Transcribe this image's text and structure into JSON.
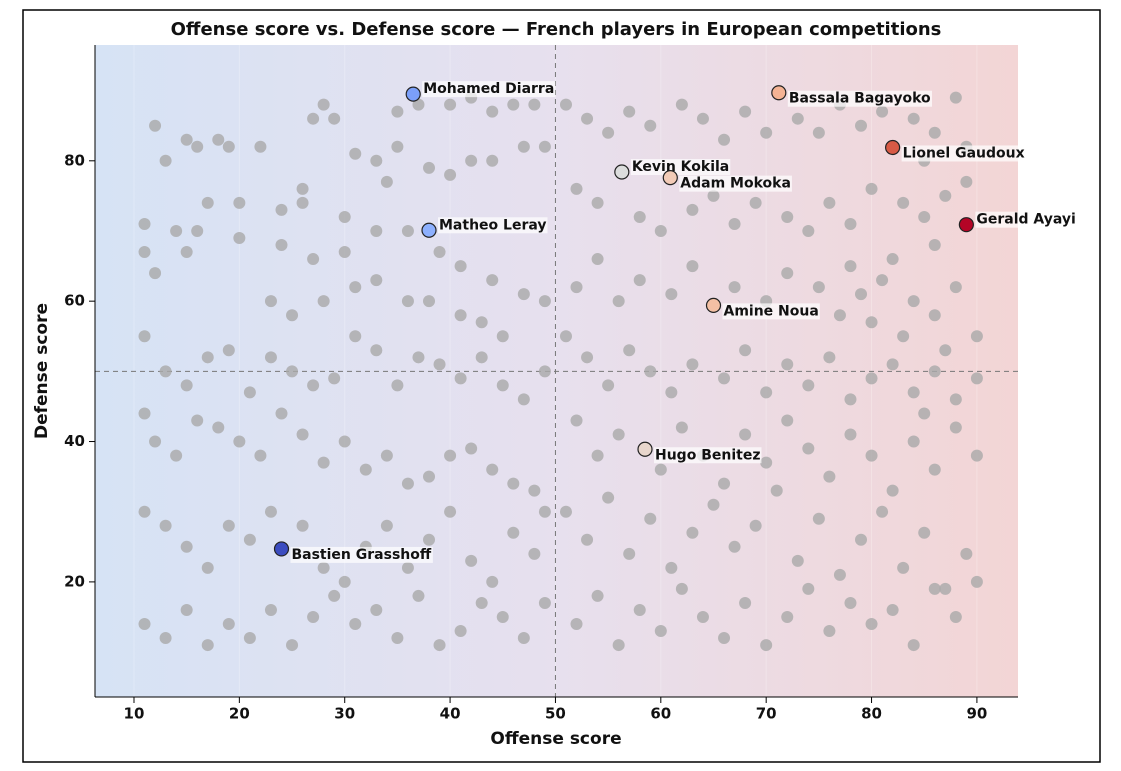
{
  "chart_data": {
    "type": "scatter",
    "title": "Offense score vs. Defense score — French players in European competitions",
    "x_label": "Offense score",
    "y_label": "Defense score",
    "xlim": [
      6.3,
      93.9
    ],
    "ylim": [
      3.6,
      96.5
    ],
    "xticks": [
      10,
      20,
      30,
      40,
      50,
      60,
      70,
      80,
      90
    ],
    "yticks": [
      20,
      40,
      60,
      80
    ],
    "reference_x": 50,
    "reference_y": 50,
    "points": {
      "color": "#a9a9a9",
      "x": [
        11,
        12,
        13,
        15,
        16,
        18,
        19,
        22,
        20,
        17,
        14,
        15,
        16,
        11,
        12,
        20,
        24,
        26,
        27,
        28,
        29,
        31,
        33,
        35,
        35,
        37,
        40,
        42,
        44,
        46,
        48,
        49,
        47,
        44,
        42,
        40,
        38,
        34,
        30,
        26,
        23,
        25,
        28,
        31,
        33,
        36,
        38,
        41,
        43,
        45,
        47,
        49,
        44,
        41,
        39,
        36,
        33,
        30,
        27,
        24,
        11,
        13,
        15,
        17,
        19,
        21,
        23,
        25,
        27,
        29,
        31,
        33,
        35,
        37,
        39,
        41,
        43,
        45,
        47,
        49,
        11,
        12,
        14,
        16,
        18,
        20,
        22,
        24,
        26,
        28,
        30,
        32,
        34,
        36,
        38,
        40,
        42,
        44,
        46,
        48,
        11,
        13,
        15,
        17,
        19,
        21,
        23,
        26,
        28,
        30,
        32,
        34,
        36,
        38,
        40,
        42,
        44,
        46,
        48,
        49,
        11,
        13,
        15,
        17,
        19,
        21,
        23,
        25,
        27,
        29,
        31,
        33,
        35,
        37,
        39,
        41,
        43,
        45,
        47,
        49,
        51,
        53,
        55,
        57,
        59,
        62,
        64,
        66,
        68,
        70,
        73,
        75,
        77,
        79,
        81,
        84,
        86,
        88,
        89,
        85,
        52,
        54,
        58,
        60,
        63,
        65,
        67,
        69,
        72,
        74,
        76,
        78,
        80,
        83,
        85,
        87,
        89,
        86,
        82,
        78,
        52,
        54,
        56,
        58,
        61,
        63,
        67,
        70,
        72,
        75,
        77,
        79,
        81,
        84,
        86,
        88,
        90,
        87,
        83,
        80,
        51,
        53,
        55,
        57,
        59,
        61,
        63,
        66,
        68,
        70,
        72,
        74,
        76,
        78,
        80,
        82,
        84,
        86,
        88,
        90,
        52,
        54,
        56,
        60,
        62,
        64,
        66,
        68,
        70,
        72,
        74,
        76,
        78,
        80,
        82,
        84,
        86,
        88,
        90,
        85,
        51,
        53,
        55,
        57,
        59,
        61,
        63,
        65,
        67,
        69,
        71,
        73,
        75,
        77,
        79,
        81,
        83,
        85,
        87,
        89,
        52,
        54,
        56,
        58,
        60,
        62,
        64,
        66,
        68,
        70,
        72,
        74,
        76,
        78,
        80,
        82,
        84,
        86,
        88,
        90
      ],
      "y": [
        71,
        85,
        80,
        83,
        82,
        83,
        82,
        82,
        74,
        74,
        70,
        67,
        70,
        67,
        64,
        69,
        73,
        76,
        86,
        88,
        86,
        81,
        80,
        82,
        87,
        88,
        88,
        89,
        87,
        88,
        88,
        82,
        82,
        80,
        80,
        78,
        79,
        77,
        72,
        74,
        60,
        58,
        60,
        62,
        63,
        60,
        60,
        58,
        57,
        55,
        61,
        60,
        63,
        65,
        67,
        70,
        70,
        67,
        66,
        68,
        55,
        50,
        48,
        52,
        53,
        47,
        52,
        50,
        48,
        49,
        55,
        53,
        48,
        52,
        51,
        49,
        52,
        48,
        46,
        50,
        44,
        40,
        38,
        43,
        42,
        40,
        38,
        44,
        41,
        37,
        40,
        36,
        38,
        34,
        35,
        38,
        39,
        36,
        34,
        33,
        30,
        28,
        25,
        22,
        28,
        26,
        30,
        28,
        22,
        20,
        25,
        28,
        22,
        26,
        30,
        23,
        20,
        27,
        24,
        30,
        14,
        12,
        16,
        11,
        14,
        12,
        16,
        11,
        15,
        18,
        14,
        16,
        12,
        18,
        11,
        13,
        17,
        15,
        12,
        17,
        88,
        86,
        84,
        87,
        85,
        88,
        86,
        83,
        87,
        84,
        86,
        84,
        88,
        85,
        87,
        86,
        84,
        89,
        82,
        80,
        76,
        74,
        72,
        70,
        73,
        75,
        71,
        74,
        72,
        70,
        74,
        71,
        76,
        74,
        72,
        75,
        77,
        68,
        66,
        65,
        62,
        66,
        60,
        63,
        61,
        65,
        62,
        60,
        64,
        62,
        58,
        61,
        63,
        60,
        58,
        62,
        55,
        53,
        55,
        57,
        55,
        52,
        48,
        53,
        50,
        47,
        51,
        49,
        53,
        47,
        51,
        48,
        52,
        46,
        49,
        51,
        47,
        50,
        46,
        49,
        43,
        38,
        41,
        36,
        42,
        38,
        34,
        41,
        37,
        43,
        39,
        35,
        41,
        38,
        33,
        40,
        36,
        42,
        38,
        44,
        30,
        26,
        32,
        24,
        29,
        22,
        27,
        31,
        25,
        28,
        33,
        23,
        29,
        21,
        26,
        30,
        22,
        27,
        19,
        24,
        14,
        18,
        11,
        16,
        13,
        19,
        15,
        12,
        17,
        11,
        15,
        19,
        13,
        17,
        14,
        16,
        11,
        19,
        15,
        20
      ]
    },
    "highlights": [
      {
        "label": "Mohamed Diarra",
        "x": 36.5,
        "y": 89.5,
        "color": "#7b9ff9"
      },
      {
        "label": "Bassala Bagayoko",
        "x": 71.2,
        "y": 89.7,
        "color": "#f4b394"
      },
      {
        "label": "Lionel Gaudoux",
        "x": 82,
        "y": 81.9,
        "color": "#d85a45"
      },
      {
        "label": "Gerald Ayayi",
        "x": 89,
        "y": 70.9,
        "color": "#b40426"
      },
      {
        "label": "Kevin Kokila",
        "x": 56.3,
        "y": 78.4,
        "color": "#dcdddd"
      },
      {
        "label": "Adam Mokoka",
        "x": 60.9,
        "y": 77.6,
        "color": "#f2cbb7"
      },
      {
        "label": "Matheo Leray",
        "x": 38,
        "y": 70.1,
        "color": "#8db0fe"
      },
      {
        "label": "Amine Noua",
        "x": 65,
        "y": 59.4,
        "color": "#f4c0a4"
      },
      {
        "label": "Hugo Benitez",
        "x": 58.5,
        "y": 38.9,
        "color": "#e8d6cc"
      },
      {
        "label": "Bastien Grasshoff",
        "x": 24,
        "y": 24.7,
        "color": "#3b4cc0"
      }
    ]
  }
}
